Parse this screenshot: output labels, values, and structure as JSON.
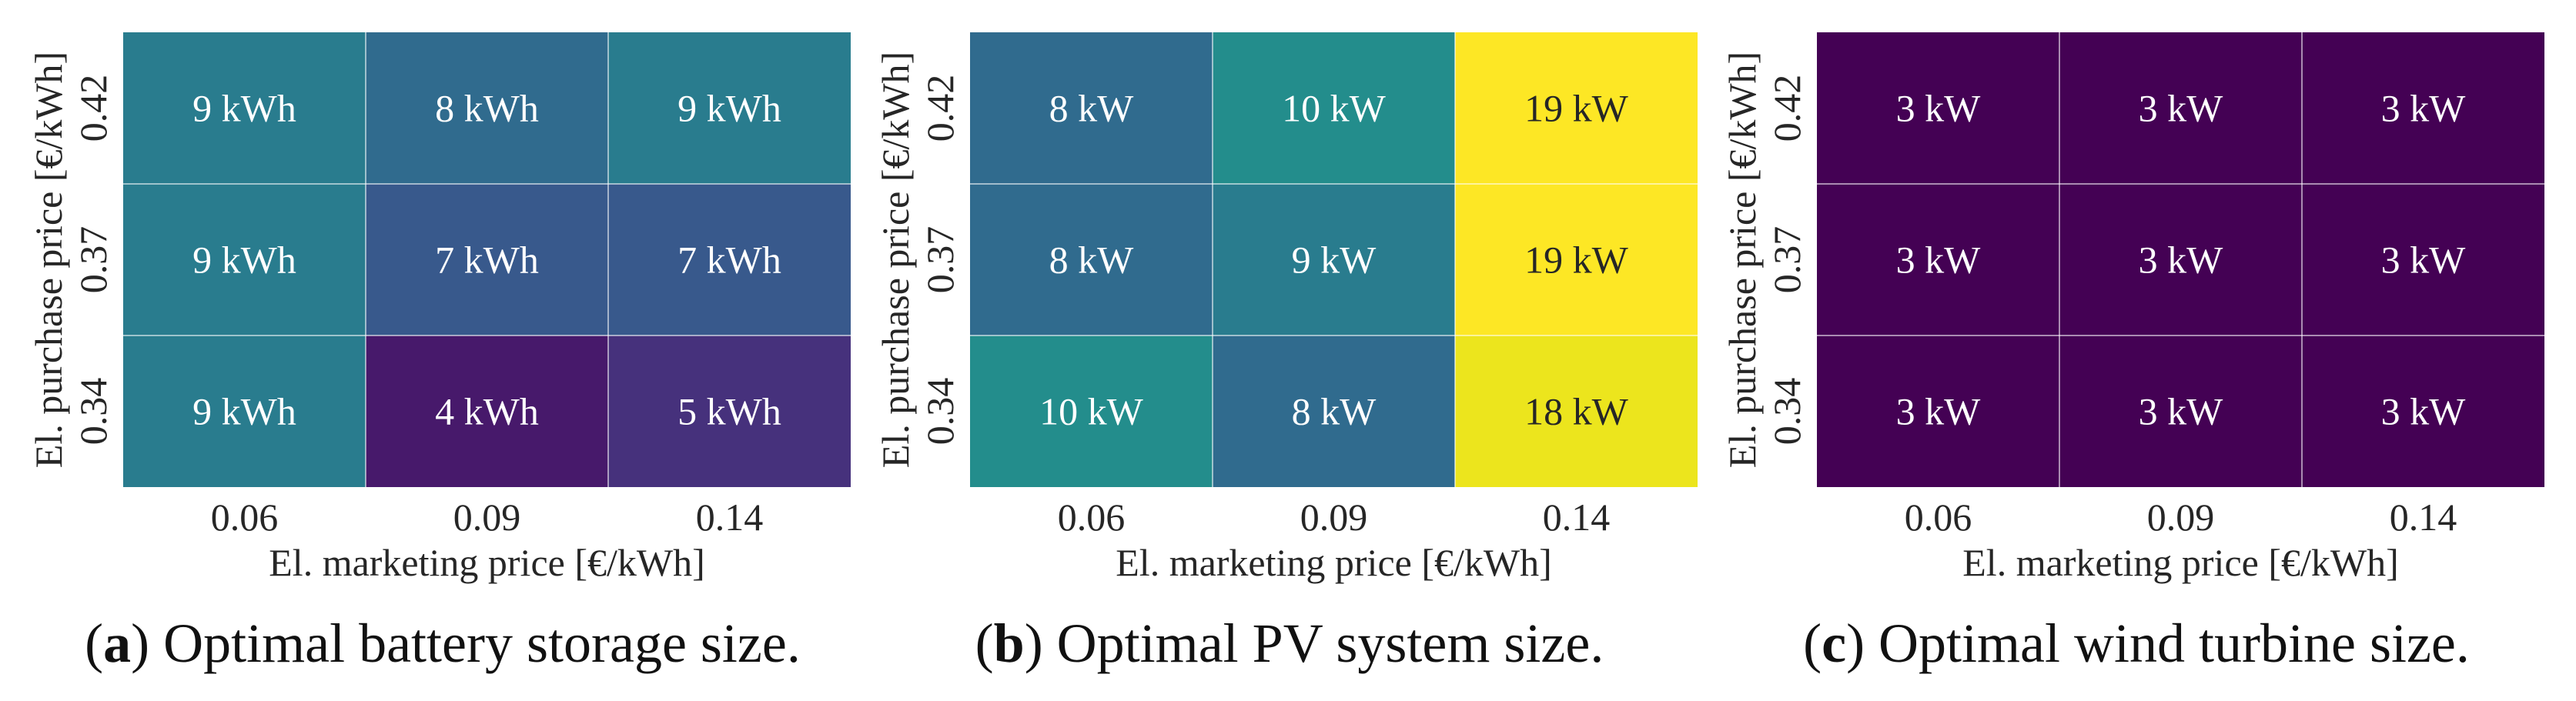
{
  "chart_data": [
    {
      "type": "heatmap",
      "panel_letter": "a",
      "caption": "Optimal battery storage size.",
      "xlabel": "El. marketing price [€/kWh]",
      "ylabel": "El. purchase price [€/kWh]",
      "x_categories": [
        "0.06",
        "0.09",
        "0.14"
      ],
      "y_categories": [
        "0.42",
        "0.37",
        "0.34"
      ],
      "unit": "kWh",
      "values": [
        [
          9,
          8,
          9
        ],
        [
          9,
          7,
          7
        ],
        [
          9,
          4,
          5
        ]
      ],
      "color_scale_min": 3,
      "color_scale_max": 19
    },
    {
      "type": "heatmap",
      "panel_letter": "b",
      "caption": "Optimal PV system size.",
      "xlabel": "El. marketing price [€/kWh]",
      "ylabel": "El. purchase price [€/kWh]",
      "x_categories": [
        "0.06",
        "0.09",
        "0.14"
      ],
      "y_categories": [
        "0.42",
        "0.37",
        "0.34"
      ],
      "unit": "kW",
      "values": [
        [
          8,
          10,
          19
        ],
        [
          8,
          9,
          19
        ],
        [
          10,
          8,
          18
        ]
      ],
      "color_scale_min": 3,
      "color_scale_max": 19
    },
    {
      "type": "heatmap",
      "panel_letter": "c",
      "caption": "Optimal wind turbine size.",
      "xlabel": "El. marketing price [€/kWh]",
      "ylabel": "El. purchase price [€/kWh]",
      "x_categories": [
        "0.06",
        "0.09",
        "0.14"
      ],
      "y_categories": [
        "0.42",
        "0.37",
        "0.34"
      ],
      "unit": "kW",
      "values": [
        [
          3,
          3,
          3
        ],
        [
          3,
          3,
          3
        ],
        [
          3,
          3,
          3
        ]
      ],
      "color_scale_min": 3,
      "color_scale_max": 19
    }
  ]
}
